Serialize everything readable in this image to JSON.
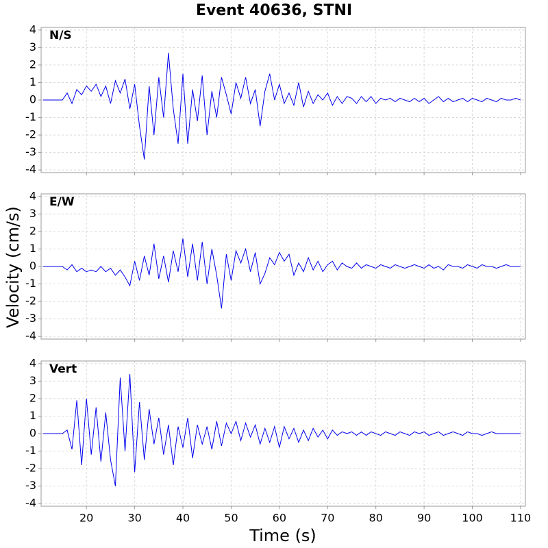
{
  "chart_data": [
    {
      "type": "line",
      "title": "Event 40636, STNI",
      "label": "N/S",
      "x": [
        11,
        12,
        13,
        14,
        15,
        16,
        17,
        18,
        19,
        20,
        21,
        22,
        23,
        24,
        25,
        26,
        27,
        28,
        29,
        30,
        31,
        32,
        33,
        34,
        35,
        36,
        37,
        38,
        39,
        40,
        41,
        42,
        43,
        44,
        45,
        46,
        47,
        48,
        49,
        50,
        51,
        52,
        53,
        54,
        55,
        56,
        57,
        58,
        59,
        60,
        61,
        62,
        63,
        64,
        65,
        66,
        67,
        68,
        69,
        70,
        71,
        72,
        73,
        74,
        75,
        76,
        77,
        78,
        79,
        80,
        81,
        82,
        83,
        84,
        85,
        86,
        87,
        88,
        89,
        90,
        91,
        92,
        93,
        94,
        95,
        96,
        97,
        98,
        99,
        100,
        101,
        102,
        103,
        104,
        105,
        106,
        107,
        108,
        109,
        110
      ],
      "series": [
        {
          "color": "#0000ee",
          "values": [
            0,
            0,
            0,
            0,
            0,
            0.4,
            -0.2,
            0.6,
            0.3,
            0.8,
            0.5,
            0.9,
            0.2,
            0.8,
            -0.2,
            1.1,
            0.4,
            1.2,
            -0.5,
            0.9,
            -1.5,
            -3.4,
            0.8,
            -2.0,
            1.3,
            -1.0,
            2.7,
            -0.5,
            -2.5,
            1.5,
            -2.5,
            0.6,
            -1.2,
            1.4,
            -2.0,
            0.5,
            -1.0,
            1.3,
            0.3,
            -0.8,
            1.0,
            0.1,
            1.3,
            -0.2,
            0.6,
            -1.5,
            0.5,
            1.5,
            0.0,
            0.9,
            -0.2,
            0.4,
            -0.3,
            1.0,
            -0.4,
            0.5,
            -0.2,
            0.3,
            0.0,
            0.4,
            -0.3,
            0.2,
            -0.2,
            0.2,
            0.1,
            -0.2,
            0.2,
            -0.1,
            0.2,
            -0.2,
            0.1,
            0.0,
            0.1,
            -0.1,
            0.1,
            0.0,
            -0.1,
            0.1,
            -0.1,
            0.1,
            -0.2,
            0.0,
            0.2,
            -0.1,
            0.1,
            -0.1,
            0.0,
            0.1,
            -0.1,
            0.1,
            0.0,
            -0.1,
            0.1,
            0.0,
            -0.1,
            0.1,
            0.0,
            0.0,
            0.1,
            0.0
          ]
        }
      ],
      "xlim": [
        10.6,
        111
      ],
      "xticks": [
        20,
        30,
        40,
        50,
        60,
        70,
        80,
        90,
        100,
        110
      ],
      "ylim": [
        -4.15,
        4.15
      ],
      "yticks": [
        -4,
        -3,
        -2,
        -1,
        0,
        1,
        2,
        3,
        4
      ],
      "grid": true
    },
    {
      "type": "line",
      "label": "E/W",
      "ylabel": "Velocity (cm/s)",
      "x": [
        11,
        12,
        13,
        14,
        15,
        16,
        17,
        18,
        19,
        20,
        21,
        22,
        23,
        24,
        25,
        26,
        27,
        28,
        29,
        30,
        31,
        32,
        33,
        34,
        35,
        36,
        37,
        38,
        39,
        40,
        41,
        42,
        43,
        44,
        45,
        46,
        47,
        48,
        49,
        50,
        51,
        52,
        53,
        54,
        55,
        56,
        57,
        58,
        59,
        60,
        61,
        62,
        63,
        64,
        65,
        66,
        67,
        68,
        69,
        70,
        71,
        72,
        73,
        74,
        75,
        76,
        77,
        78,
        79,
        80,
        81,
        82,
        83,
        84,
        85,
        86,
        87,
        88,
        89,
        90,
        91,
        92,
        93,
        94,
        95,
        96,
        97,
        98,
        99,
        100,
        101,
        102,
        103,
        104,
        105,
        106,
        107,
        108,
        109,
        110
      ],
      "series": [
        {
          "color": "#0000ee",
          "values": [
            0,
            0,
            0,
            0,
            0,
            -0.2,
            0.1,
            -0.3,
            -0.1,
            -0.3,
            -0.2,
            -0.3,
            0.0,
            -0.3,
            -0.1,
            -0.5,
            -0.2,
            -0.6,
            -1.1,
            0.3,
            -0.8,
            0.6,
            -0.5,
            1.3,
            -0.7,
            0.6,
            -0.9,
            0.9,
            -0.3,
            1.6,
            -0.6,
            1.3,
            -0.8,
            1.4,
            -1.0,
            1.0,
            -0.5,
            -2.4,
            0.7,
            -0.8,
            0.9,
            0.2,
            1.0,
            -0.3,
            0.8,
            -1.0,
            -0.4,
            0.5,
            0.1,
            0.8,
            0.3,
            0.7,
            -0.5,
            0.2,
            -0.3,
            0.5,
            -0.2,
            0.3,
            -0.3,
            0.1,
            0.3,
            -0.2,
            0.2,
            0.0,
            -0.1,
            0.2,
            -0.1,
            0.1,
            0.0,
            -0.1,
            0.1,
            0.0,
            -0.1,
            0.1,
            0.0,
            -0.1,
            0.0,
            0.1,
            0.0,
            -0.1,
            0.1,
            -0.1,
            0.0,
            -0.2,
            0.1,
            0.0,
            0.0,
            -0.1,
            0.1,
            0.0,
            -0.1,
            0.1,
            0.0,
            0.0,
            -0.1,
            0.0,
            0.1,
            0.0,
            0.0,
            0.0
          ]
        }
      ],
      "xlim": [
        10.6,
        111
      ],
      "xticks": [
        20,
        30,
        40,
        50,
        60,
        70,
        80,
        90,
        100,
        110
      ],
      "ylim": [
        -4.15,
        4.15
      ],
      "yticks": [
        -4,
        -3,
        -2,
        -1,
        0,
        1,
        2,
        3,
        4
      ],
      "grid": true
    },
    {
      "type": "line",
      "label": "Vert",
      "xlabel": "Time (s)",
      "x": [
        11,
        12,
        13,
        14,
        15,
        16,
        17,
        18,
        19,
        20,
        21,
        22,
        23,
        24,
        25,
        26,
        27,
        28,
        29,
        30,
        31,
        32,
        33,
        34,
        35,
        36,
        37,
        38,
        39,
        40,
        41,
        42,
        43,
        44,
        45,
        46,
        47,
        48,
        49,
        50,
        51,
        52,
        53,
        54,
        55,
        56,
        57,
        58,
        59,
        60,
        61,
        62,
        63,
        64,
        65,
        66,
        67,
        68,
        69,
        70,
        71,
        72,
        73,
        74,
        75,
        76,
        77,
        78,
        79,
        80,
        81,
        82,
        83,
        84,
        85,
        86,
        87,
        88,
        89,
        90,
        91,
        92,
        93,
        94,
        95,
        96,
        97,
        98,
        99,
        100,
        101,
        102,
        103,
        104,
        105,
        106,
        107,
        108,
        109,
        110
      ],
      "series": [
        {
          "color": "#0000ee",
          "values": [
            0,
            0,
            0,
            0,
            0,
            0.2,
            -0.9,
            1.9,
            -1.8,
            2.0,
            -1.2,
            1.5,
            -1.6,
            1.2,
            -1.5,
            -3.0,
            3.2,
            -1.0,
            3.4,
            -2.2,
            1.8,
            -1.5,
            1.4,
            -0.6,
            0.9,
            -1.2,
            0.5,
            -1.8,
            0.4,
            -0.8,
            0.9,
            -1.4,
            0.5,
            -0.6,
            0.4,
            -0.9,
            0.7,
            -0.7,
            0.6,
            0.0,
            0.7,
            -0.4,
            0.6,
            -0.2,
            0.5,
            -0.6,
            0.3,
            -0.5,
            0.4,
            -0.8,
            0.4,
            -0.3,
            0.3,
            -0.5,
            0.2,
            -0.4,
            0.3,
            -0.2,
            0.2,
            -0.3,
            0.2,
            -0.1,
            0.1,
            0.0,
            0.1,
            -0.1,
            0.1,
            -0.1,
            0.1,
            0.0,
            -0.1,
            0.1,
            0.0,
            -0.1,
            0.1,
            0.0,
            -0.1,
            0.1,
            0.0,
            0.1,
            -0.1,
            0.0,
            0.1,
            -0.1,
            0.0,
            0.1,
            0.0,
            -0.1,
            0.1,
            0.0,
            0.0,
            -0.1,
            0.0,
            0.1,
            0.0,
            0.0,
            0.0,
            0.0,
            0.0,
            0.0
          ]
        }
      ],
      "xlim": [
        10.6,
        111
      ],
      "xticks": [
        20,
        30,
        40,
        50,
        60,
        70,
        80,
        90,
        100,
        110
      ],
      "ylim": [
        -4.15,
        4.15
      ],
      "yticks": [
        -4,
        -3,
        -2,
        -1,
        0,
        1,
        2,
        3,
        4
      ],
      "grid": true
    }
  ]
}
